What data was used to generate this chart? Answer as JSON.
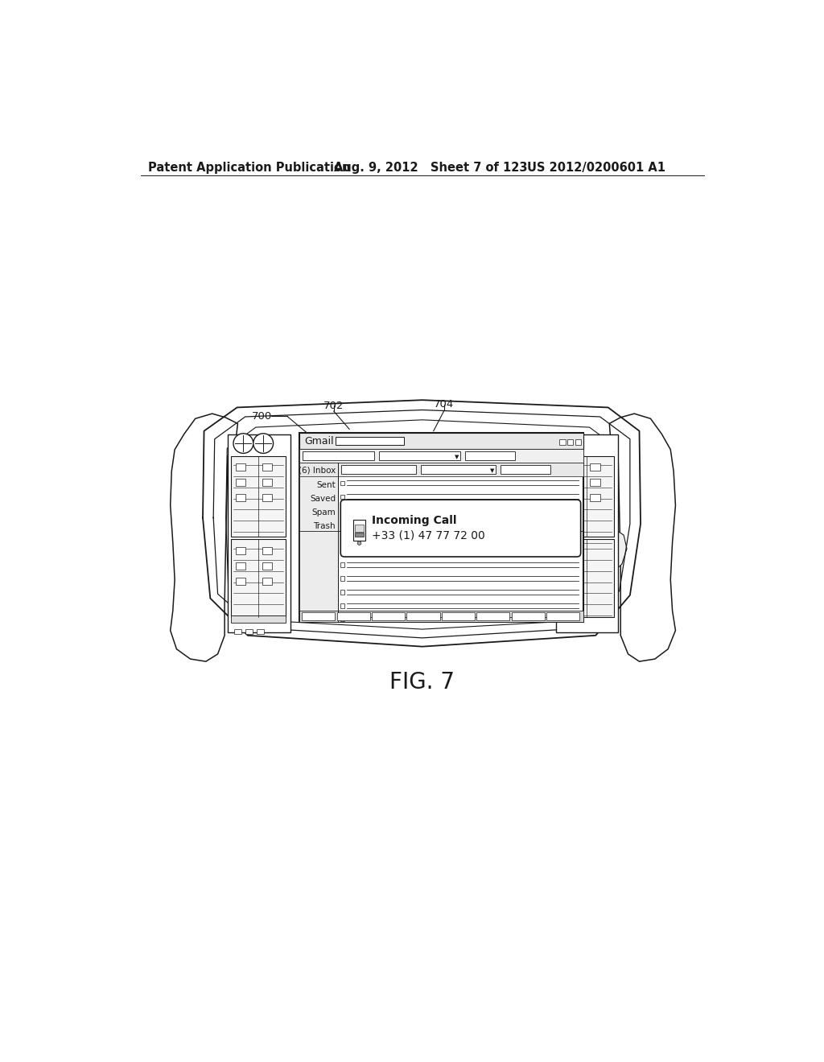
{
  "header_left": "Patent Application Publication",
  "header_mid": "Aug. 9, 2012   Sheet 7 of 123",
  "header_right": "US 2012/0200601 A1",
  "fig_label": "FIG. 7",
  "label_700": "700",
  "label_702": "702",
  "label_704": "704",
  "gmail_title": "Gmail",
  "inbox_label": "(6) Inbox",
  "sidebar_items": [
    "Sent",
    "Saved",
    "Spam",
    "Trash"
  ],
  "incoming_call_title": "Incoming Call",
  "incoming_call_number": "+33 (1) 47 77 72 00",
  "bg_color": "#ffffff",
  "line_color": "#1a1a1a",
  "header_font_size": 10.5,
  "fig_font_size": 20
}
